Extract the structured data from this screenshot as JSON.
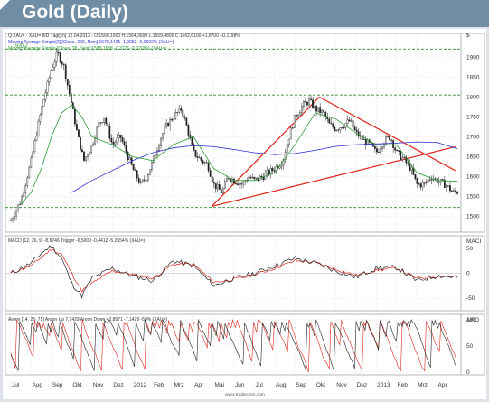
{
  "header": {
    "title": "Gold (Daily)"
  },
  "chart_data": {
    "type": "line",
    "x_labels": [
      "Jul",
      "Aug",
      "Sep",
      "Okt",
      "Nov",
      "Dez",
      "2012",
      "Feb",
      "Mrz",
      "Apr",
      "Mai",
      "Jun",
      "Jul",
      "Aug",
      "Sep",
      "Okt",
      "Nov",
      "Dez",
      "2013",
      "Feb",
      "Mrz",
      "Apr"
    ],
    "panels": [
      {
        "name": "price",
        "info": [
          "Q:XAU= · XAU= 8ID Tägl[ch] 12.04.2013 - O:1560,1900 H:1564,3600 L:1559,4800 C:1562,6100 +1,8700 +0,1198%",
          "Moving Average Simple[2] [Close, 200, Nein] 1670,1425 -1,0052 -0,0602% (XAU=)",
          "Moving Average Simple [Close, 38, Nein] 1588,1588 -0,3276 -0,0206% (XAU=)"
        ],
        "y_unit": "$",
        "y_ticks": [
          1500,
          1550,
          1600,
          1650,
          1700,
          1750,
          1800,
          1850,
          1900
        ],
        "ylim": [
          1460,
          1960
        ],
        "hlines": [
          {
            "value": 1920.7,
            "label": "1920,7"
          },
          {
            "value": 1805,
            "label": ""
          },
          {
            "value": 1522,
            "label": ""
          }
        ],
        "trendlines": [
          {
            "x": [
              9.9,
              15.2
            ],
            "y": [
              1525,
              1800
            ]
          },
          {
            "x": [
              15.2,
              21.9
            ],
            "y": [
              1800,
              1615
            ]
          },
          {
            "x": [
              9.9,
              21.9
            ],
            "y": [
              1525,
              1675
            ]
          }
        ],
        "close": {
          "x": [
            0,
            0.5,
            1,
            1.3,
            1.6,
            1.8,
            2,
            2.3,
            2.6,
            3,
            3.3,
            3.6,
            4,
            4.3,
            4.6,
            5,
            5.4,
            5.7,
            6,
            6.4,
            6.7,
            7,
            7.4,
            7.7,
            8,
            8.4,
            8.7,
            9,
            9.4,
            9.7,
            10,
            10.4,
            10.7,
            11,
            11.4,
            11.7,
            12,
            12.4,
            12.7,
            13,
            13.4,
            13.7,
            14,
            14.4,
            14.7,
            15,
            15.4,
            15.7,
            16,
            16.4,
            16.7,
            17,
            17.4,
            17.7,
            18,
            18.4,
            18.7,
            19,
            19.4,
            19.7,
            20,
            20.4,
            20.7,
            21,
            21.4,
            21.6,
            21.8,
            22
          ],
          "y": [
            1490,
            1540,
            1640,
            1720,
            1790,
            1830,
            1870,
            1910,
            1880,
            1780,
            1700,
            1640,
            1680,
            1730,
            1750,
            1680,
            1700,
            1660,
            1620,
            1580,
            1600,
            1640,
            1700,
            1730,
            1750,
            1770,
            1720,
            1660,
            1640,
            1630,
            1580,
            1560,
            1600,
            1590,
            1580,
            1600,
            1590,
            1600,
            1610,
            1620,
            1640,
            1700,
            1750,
            1780,
            1790,
            1770,
            1760,
            1730,
            1720,
            1730,
            1740,
            1710,
            1690,
            1680,
            1660,
            1690,
            1700,
            1660,
            1640,
            1620,
            1580,
            1580,
            1600,
            1590,
            1580,
            1570,
            1560,
            1562
          ]
        },
        "ma200": {
          "x": [
            3,
            4,
            5,
            6,
            7,
            8,
            9,
            10,
            11,
            12,
            13,
            14,
            15,
            16,
            17,
            18,
            19,
            20,
            21,
            22
          ],
          "y": [
            1560,
            1590,
            1615,
            1640,
            1660,
            1672,
            1678,
            1675,
            1668,
            1660,
            1655,
            1658,
            1666,
            1676,
            1680,
            1682,
            1684,
            1687,
            1686,
            1670
          ]
        },
        "ma38": {
          "x": [
            0.5,
            1,
            1.5,
            2,
            2.5,
            3,
            3.5,
            4,
            5,
            6,
            7,
            8,
            9,
            10,
            11,
            12,
            13,
            14,
            15,
            16,
            17,
            18,
            19,
            20,
            21,
            22
          ],
          "y": [
            1530,
            1560,
            1620,
            1700,
            1760,
            1780,
            1750,
            1700,
            1680,
            1650,
            1640,
            1680,
            1700,
            1620,
            1590,
            1590,
            1610,
            1680,
            1760,
            1745,
            1710,
            1680,
            1680,
            1610,
            1590,
            1588
          ]
        }
      },
      {
        "name": "macd",
        "info": "MACD [12, 26, 9] -8,6746 Trigger -6,5000 -0,4412 -5,2554% (XAU=)",
        "label": "MACI",
        "y_ticks": [
          50,
          0,
          -50
        ],
        "ylim": [
          -75,
          75
        ],
        "macd": {
          "x": [
            0,
            1,
            1.5,
            2,
            2.5,
            3,
            3.5,
            4,
            5,
            6,
            7,
            8,
            9,
            10,
            11,
            12,
            13,
            14,
            15,
            16,
            17,
            18,
            19,
            20,
            21,
            22
          ],
          "y": [
            0,
            20,
            40,
            55,
            30,
            -20,
            -45,
            -10,
            10,
            -5,
            -15,
            25,
            15,
            -25,
            -10,
            0,
            15,
            30,
            20,
            5,
            -8,
            10,
            12,
            -15,
            -5,
            -8
          ]
        },
        "trigger": {
          "x": [
            0,
            1,
            1.5,
            2,
            2.5,
            3,
            3.5,
            4,
            5,
            6,
            7,
            8,
            9,
            10,
            11,
            12,
            13,
            14,
            15,
            16,
            17,
            18,
            19,
            20,
            21,
            22
          ],
          "y": [
            0,
            15,
            32,
            48,
            38,
            0,
            -35,
            -20,
            5,
            -2,
            -10,
            18,
            18,
            -18,
            -12,
            -3,
            10,
            25,
            22,
            8,
            -4,
            6,
            10,
            -10,
            -6,
            -6
          ]
        }
      },
      {
        "name": "aroon",
        "info": "Aroon [14, 25, 75] Aroon Up 7,1429 Aroon Down 42,8571 -7,1429 -50% (XAU=)",
        "label": "ARO",
        "y_ticks": [
          100,
          50,
          0
        ],
        "ylim": [
          -5,
          110
        ]
      }
    ],
    "footer": "www.traderoom.com"
  }
}
